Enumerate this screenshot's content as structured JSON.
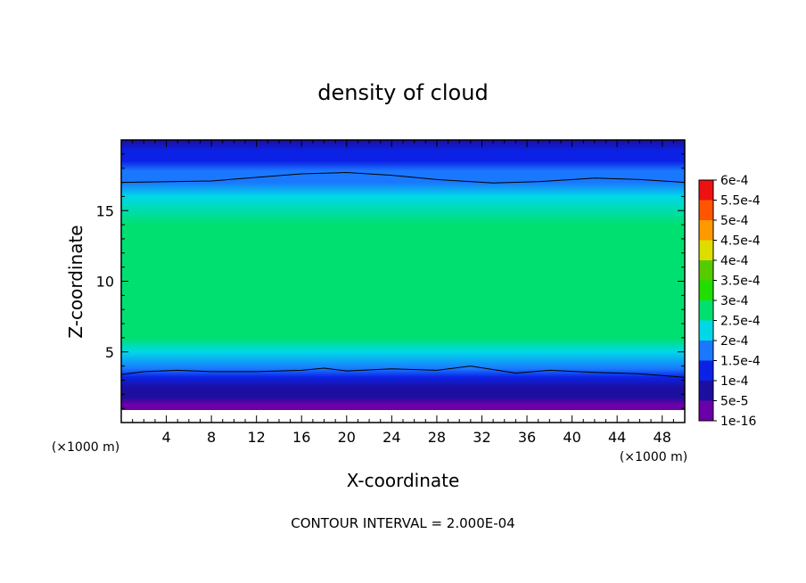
{
  "chart_data": {
    "type": "heatmap",
    "title": "density of cloud",
    "xlabel": "X-coordinate",
    "ylabel": "Z-coordinate",
    "x_unit": "(×1000 m)",
    "y_unit": "(×1000 m)",
    "xlim": [
      0,
      50
    ],
    "ylim": [
      0,
      20
    ],
    "x_ticks": [
      4,
      8,
      12,
      16,
      20,
      24,
      28,
      32,
      36,
      40,
      44,
      48
    ],
    "y_ticks": [
      5,
      10,
      15
    ],
    "footer": "CONTOUR INTERVAL = 2.000E-04",
    "contour_interval": 0.0002,
    "colorbar": {
      "levels": [
        "1e-16",
        "5e-5",
        "1e-4",
        "1.5e-4",
        "2e-4",
        "2.5e-4",
        "3e-4",
        "3.5e-4",
        "4e-4",
        "4.5e-4",
        "5e-4",
        "5.5e-4",
        "6e-4"
      ],
      "colors": [
        "#6a00a8",
        "#1c0fa0",
        "#0b22e6",
        "#1a78ff",
        "#00d8e8",
        "#00e070",
        "#22dd00",
        "#55cc00",
        "#dddd00",
        "#ff9900",
        "#ff5500",
        "#ee1111",
        "#ff8888"
      ]
    },
    "vertical_profile": {
      "z": [
        0.9,
        1.3,
        1.8,
        2.5,
        3.2,
        3.8,
        5,
        6,
        8,
        10,
        12,
        14,
        16,
        17,
        17.8,
        18.5,
        19.2,
        20
      ],
      "density": [
        1e-16,
        3e-05,
        6e-05,
        8.5e-05,
        0.00012,
        0.00018,
        0.00023,
        0.00026,
        0.000285,
        0.00029,
        0.000285,
        0.00026,
        0.00022,
        0.00019,
        0.00016,
        0.00013,
        0.0001,
        8e-05
      ]
    },
    "contour_lines": [
      {
        "level": "2e-4",
        "x": [
          0,
          8,
          16,
          20,
          24,
          28,
          33,
          37,
          42,
          46,
          50
        ],
        "z": [
          17.0,
          17.1,
          17.6,
          17.7,
          17.5,
          17.2,
          16.95,
          17.05,
          17.3,
          17.2,
          17.0
        ]
      },
      {
        "level": "2e-4",
        "x": [
          0,
          2,
          5,
          8,
          12,
          16,
          18,
          20,
          24,
          28,
          31,
          35,
          38,
          42,
          46,
          50
        ],
        "z": [
          3.4,
          3.6,
          3.7,
          3.6,
          3.6,
          3.7,
          3.85,
          3.65,
          3.8,
          3.7,
          4.0,
          3.5,
          3.7,
          3.55,
          3.45,
          3.2
        ]
      }
    ]
  }
}
